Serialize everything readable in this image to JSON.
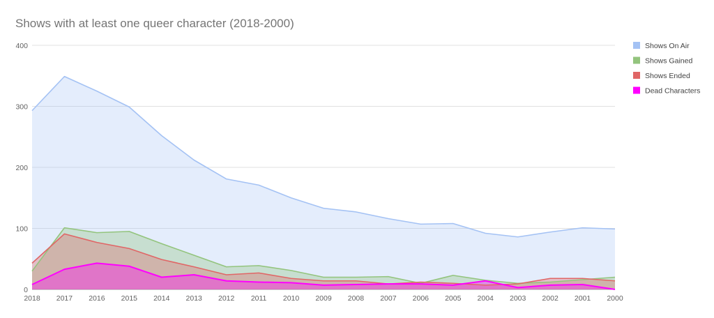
{
  "chart_data": {
    "type": "area",
    "title": "Shows with at least one queer character (2018-2000)",
    "xlabel": "",
    "ylabel": "",
    "ylim": [
      0,
      400
    ],
    "yticks": [
      0,
      100,
      200,
      300,
      400
    ],
    "grid": true,
    "legend_position": "right",
    "categories": [
      "2018",
      "2017",
      "2016",
      "2015",
      "2014",
      "2013",
      "2012",
      "2011",
      "2010",
      "2009",
      "2008",
      "2007",
      "2006",
      "2005",
      "2004",
      "2003",
      "2002",
      "2001",
      "2000"
    ],
    "series": [
      {
        "name": "Shows On Air",
        "color": "#a4c2f4",
        "values": [
          293,
          349,
          325,
          299,
          252,
          212,
          181,
          171,
          150,
          133,
          127,
          116,
          107,
          108,
          92,
          86,
          94,
          101,
          99
        ]
      },
      {
        "name": "Shows Gained",
        "color": "#93c47d",
        "values": [
          30,
          101,
          93,
          95,
          75,
          56,
          37,
          39,
          31,
          20,
          20,
          21,
          10,
          23,
          15,
          10,
          12,
          16,
          20
        ]
      },
      {
        "name": "Shows Ended",
        "color": "#e06666",
        "values": [
          43,
          91,
          77,
          67,
          49,
          37,
          24,
          27,
          18,
          14,
          14,
          9,
          12,
          10,
          7,
          9,
          18,
          18,
          14
        ]
      },
      {
        "name": "Dead Characters",
        "color": "#ff00ff",
        "values": [
          8,
          33,
          43,
          38,
          20,
          24,
          14,
          12,
          11,
          7,
          8,
          9,
          9,
          7,
          14,
          3,
          7,
          8,
          0
        ]
      }
    ]
  }
}
